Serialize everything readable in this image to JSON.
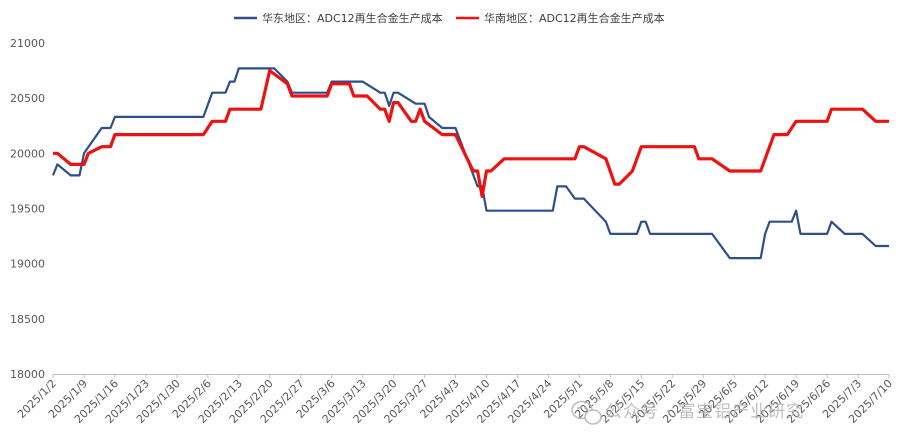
{
  "chart_data": {
    "type": "line",
    "title": "",
    "xlabel": "",
    "ylabel": "",
    "ylim": [
      18000,
      21000
    ],
    "yticks": [
      18000,
      18500,
      19000,
      19500,
      20000,
      20500,
      21000
    ],
    "x_start": "2025/1/2",
    "x_tick_labels": [
      "2025/1/2",
      "2025/1/9",
      "2025/1/16",
      "2025/1/23",
      "2025/1/30",
      "2025/2/6",
      "2025/2/13",
      "2025/2/20",
      "2025/2/27",
      "2025/3/6",
      "2025/3/13",
      "2025/3/20",
      "2025/3/27",
      "2025/4/3",
      "2025/4/10",
      "2025/4/17",
      "2025/4/24",
      "2025/5/1",
      "2025/5/8",
      "2025/5/15",
      "2025/5/22",
      "2025/5/29",
      "2025/6/5",
      "2025/6/12",
      "2025/6/19",
      "2025/6/26",
      "2025/7/3",
      "2025/7/10"
    ],
    "grid": false,
    "legend_position": "top",
    "series": [
      {
        "name": "华东地区：ADC12再生合金生产成本",
        "color": "#2e4f8a",
        "points": [
          [
            "2025/1/2",
            19800
          ],
          [
            "2025/1/3",
            19900
          ],
          [
            "2025/1/6",
            19800
          ],
          [
            "2025/1/8",
            19800
          ],
          [
            "2025/1/9",
            20000
          ],
          [
            "2025/1/13",
            20230
          ],
          [
            "2025/1/15",
            20230
          ],
          [
            "2025/1/16",
            20330
          ],
          [
            "2025/2/5",
            20330
          ],
          [
            "2025/2/7",
            20550
          ],
          [
            "2025/2/10",
            20550
          ],
          [
            "2025/2/11",
            20650
          ],
          [
            "2025/2/12",
            20650
          ],
          [
            "2025/2/13",
            20770
          ],
          [
            "2025/2/21",
            20770
          ],
          [
            "2025/2/24",
            20650
          ],
          [
            "2025/2/25",
            20550
          ],
          [
            "2025/3/5",
            20550
          ],
          [
            "2025/3/6",
            20650
          ],
          [
            "2025/3/13",
            20650
          ],
          [
            "2025/3/17",
            20550
          ],
          [
            "2025/3/18",
            20550
          ],
          [
            "2025/3/19",
            20430
          ],
          [
            "2025/3/20",
            20550
          ],
          [
            "2025/3/21",
            20550
          ],
          [
            "2025/3/25",
            20450
          ],
          [
            "2025/3/27",
            20450
          ],
          [
            "2025/3/28",
            20330
          ],
          [
            "2025/3/31",
            20230
          ],
          [
            "2025/4/3",
            20230
          ],
          [
            "2025/4/8",
            19700
          ],
          [
            "2025/4/9",
            19700
          ],
          [
            "2025/4/10",
            19480
          ],
          [
            "2025/4/25",
            19480
          ],
          [
            "2025/4/26",
            19700
          ],
          [
            "2025/4/28",
            19700
          ],
          [
            "2025/4/30",
            19590
          ],
          [
            "2025/5/2",
            19590
          ],
          [
            "2025/5/7",
            19380
          ],
          [
            "2025/5/8",
            19270
          ],
          [
            "2025/5/14",
            19270
          ],
          [
            "2025/5/15",
            19380
          ],
          [
            "2025/5/16",
            19380
          ],
          [
            "2025/5/17",
            19270
          ],
          [
            "2025/5/31",
            19270
          ],
          [
            "2025/6/4",
            19050
          ],
          [
            "2025/6/11",
            19050
          ],
          [
            "2025/6/12",
            19270
          ],
          [
            "2025/6/13",
            19380
          ],
          [
            "2025/6/18",
            19380
          ],
          [
            "2025/6/19",
            19480
          ],
          [
            "2025/6/20",
            19270
          ],
          [
            "2025/6/26",
            19270
          ],
          [
            "2025/6/27",
            19380
          ],
          [
            "2025/6/30",
            19270
          ],
          [
            "2025/7/4",
            19270
          ],
          [
            "2025/7/7",
            19160
          ],
          [
            "2025/7/10",
            19160
          ]
        ]
      },
      {
        "name": "华南地区：ADC12再生合金生产成本",
        "color": "#ee1111",
        "points": [
          [
            "2025/1/2",
            20000
          ],
          [
            "2025/1/3",
            20000
          ],
          [
            "2025/1/6",
            19900
          ],
          [
            "2025/1/9",
            19900
          ],
          [
            "2025/1/10",
            20000
          ],
          [
            "2025/1/13",
            20060
          ],
          [
            "2025/1/15",
            20060
          ],
          [
            "2025/1/16",
            20170
          ],
          [
            "2025/2/5",
            20170
          ],
          [
            "2025/2/7",
            20290
          ],
          [
            "2025/2/10",
            20290
          ],
          [
            "2025/2/11",
            20400
          ],
          [
            "2025/2/18",
            20400
          ],
          [
            "2025/2/20",
            20750
          ],
          [
            "2025/2/24",
            20630
          ],
          [
            "2025/2/25",
            20520
          ],
          [
            "2025/3/5",
            20520
          ],
          [
            "2025/3/6",
            20630
          ],
          [
            "2025/3/10",
            20630
          ],
          [
            "2025/3/11",
            20520
          ],
          [
            "2025/3/14",
            20520
          ],
          [
            "2025/3/17",
            20400
          ],
          [
            "2025/3/18",
            20400
          ],
          [
            "2025/3/19",
            20290
          ],
          [
            "2025/3/20",
            20460
          ],
          [
            "2025/3/21",
            20460
          ],
          [
            "2025/3/24",
            20290
          ],
          [
            "2025/3/25",
            20290
          ],
          [
            "2025/3/26",
            20400
          ],
          [
            "2025/3/27",
            20290
          ],
          [
            "2025/3/31",
            20170
          ],
          [
            "2025/4/3",
            20170
          ],
          [
            "2025/4/7",
            19840
          ],
          [
            "2025/4/8",
            19840
          ],
          [
            "2025/4/9",
            19610
          ],
          [
            "2025/4/10",
            19840
          ],
          [
            "2025/4/11",
            19840
          ],
          [
            "2025/4/14",
            19950
          ],
          [
            "2025/4/30",
            19950
          ],
          [
            "2025/5/1",
            20060
          ],
          [
            "2025/5/2",
            20060
          ],
          [
            "2025/5/7",
            19950
          ],
          [
            "2025/5/9",
            19720
          ],
          [
            "2025/5/10",
            19720
          ],
          [
            "2025/5/13",
            19840
          ],
          [
            "2025/5/15",
            20060
          ],
          [
            "2025/5/27",
            20060
          ],
          [
            "2025/5/28",
            19950
          ],
          [
            "2025/5/31",
            19950
          ],
          [
            "2025/6/4",
            19840
          ],
          [
            "2025/6/11",
            19840
          ],
          [
            "2025/6/14",
            20170
          ],
          [
            "2025/6/17",
            20170
          ],
          [
            "2025/6/19",
            20290
          ],
          [
            "2025/6/26",
            20290
          ],
          [
            "2025/6/27",
            20400
          ],
          [
            "2025/7/4",
            20400
          ],
          [
            "2025/7/7",
            20290
          ],
          [
            "2025/7/10",
            20290
          ]
        ]
      }
    ]
  },
  "watermark": {
    "text": "公众号 · 富宝铝产业研究",
    "icon": "wechat-icon"
  }
}
